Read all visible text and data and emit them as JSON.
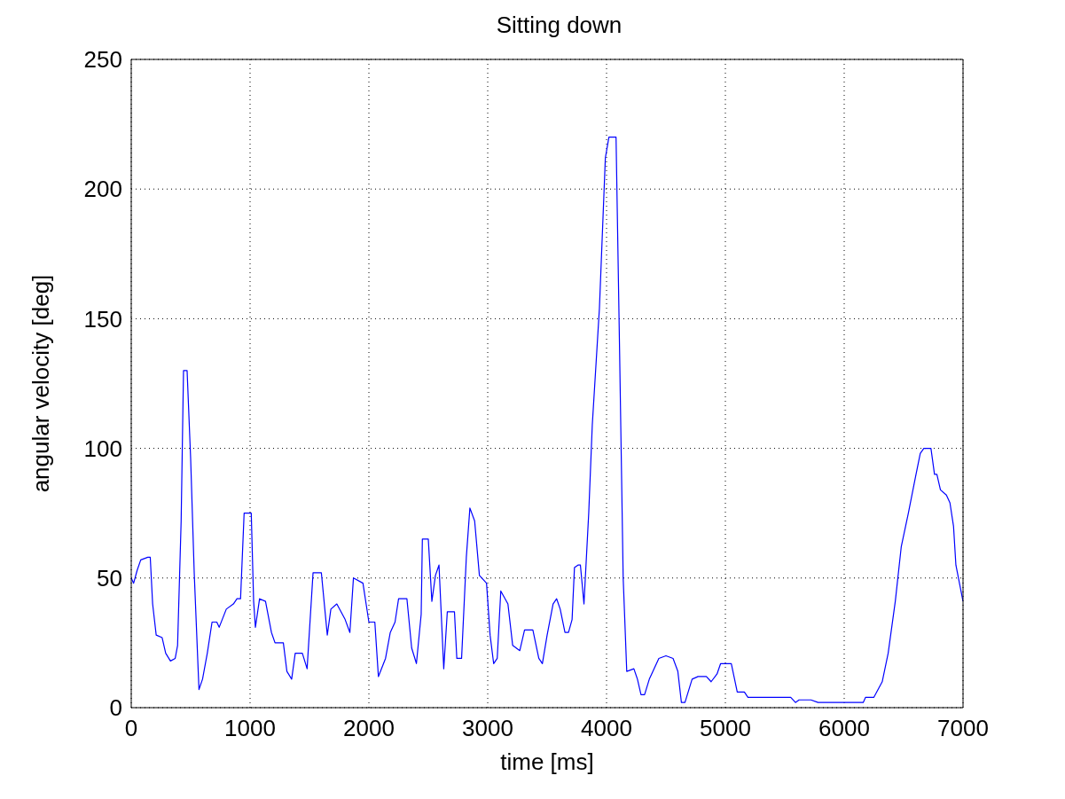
{
  "chart_data": {
    "type": "line",
    "title": "Sitting down",
    "xlabel": "time [ms]",
    "ylabel": "angular velocity [deg]",
    "xlim": [
      0,
      7000
    ],
    "ylim": [
      0,
      250
    ],
    "xticks": [
      0,
      1000,
      2000,
      3000,
      4000,
      5000,
      6000,
      7000
    ],
    "yticks": [
      0,
      50,
      100,
      150,
      200,
      250
    ],
    "grid": true,
    "marker": "none",
    "line_style": "solid",
    "series": [
      {
        "color": "#0000ff",
        "x": [
          0,
          20,
          50,
          80,
          140,
          160,
          180,
          210,
          260,
          290,
          330,
          370,
          390,
          420,
          440,
          470,
          500,
          530,
          570,
          600,
          640,
          680,
          720,
          740,
          800,
          860,
          890,
          920,
          950,
          1010,
          1030,
          1045,
          1080,
          1130,
          1180,
          1210,
          1280,
          1310,
          1350,
          1380,
          1440,
          1480,
          1530,
          1600,
          1650,
          1680,
          1730,
          1800,
          1840,
          1870,
          1950,
          2000,
          2050,
          2080,
          2140,
          2180,
          2220,
          2250,
          2320,
          2360,
          2400,
          2440,
          2450,
          2500,
          2530,
          2560,
          2590,
          2630,
          2660,
          2720,
          2740,
          2780,
          2820,
          2850,
          2890,
          2930,
          2990,
          3020,
          3050,
          3080,
          3110,
          3170,
          3210,
          3270,
          3310,
          3380,
          3430,
          3460,
          3500,
          3550,
          3580,
          3610,
          3650,
          3680,
          3710,
          3730,
          3760,
          3780,
          3810,
          3850,
          3880,
          3940,
          3990,
          4020,
          4080,
          4110,
          4140,
          4170,
          4230,
          4260,
          4290,
          4320,
          4360,
          4440,
          4500,
          4560,
          4600,
          4630,
          4660,
          4720,
          4770,
          4840,
          4880,
          4930,
          4960,
          5050,
          5100,
          5160,
          5190,
          5320,
          5350,
          5440,
          5550,
          5590,
          5620,
          5720,
          5780,
          5820,
          5930,
          6030,
          6120,
          6160,
          6180,
          6250,
          6320,
          6370,
          6430,
          6480,
          6540,
          6600,
          6640,
          6670,
          6730,
          6760,
          6780,
          6810,
          6860,
          6890,
          6920,
          6940,
          7000
        ],
        "values": [
          50,
          48,
          53,
          57,
          58,
          58,
          40,
          28,
          27,
          21,
          18,
          19,
          24,
          72,
          130,
          130,
          96,
          52,
          7,
          11,
          21,
          33,
          33,
          31,
          38,
          40,
          42,
          42,
          75,
          75,
          41,
          31,
          42,
          41,
          29,
          25,
          25,
          14,
          11,
          21,
          21,
          15,
          52,
          52,
          28,
          38,
          40,
          34,
          29,
          50,
          48,
          33,
          33,
          12,
          19,
          29,
          33,
          42,
          42,
          23,
          17,
          36,
          65,
          65,
          41,
          51,
          55,
          15,
          37,
          37,
          19,
          19,
          58,
          77,
          72,
          51,
          48,
          28,
          17,
          19,
          45,
          40,
          24,
          22,
          30,
          30,
          19,
          17,
          28,
          40,
          42,
          38,
          29,
          29,
          34,
          54,
          55,
          55,
          40,
          75,
          109,
          154,
          212,
          220,
          220,
          137,
          50,
          14,
          15,
          11,
          5,
          5,
          11,
          19,
          20,
          19,
          14,
          2,
          2,
          11,
          12,
          12,
          10,
          13,
          17,
          17,
          6,
          6,
          4,
          4,
          4,
          4,
          4,
          2,
          3,
          3,
          2,
          2,
          2,
          2,
          2,
          2,
          4,
          4,
          10,
          21,
          41,
          62,
          75,
          89,
          98,
          100,
          100,
          90,
          90,
          84,
          82,
          79,
          70,
          55,
          41
        ]
      }
    ]
  }
}
